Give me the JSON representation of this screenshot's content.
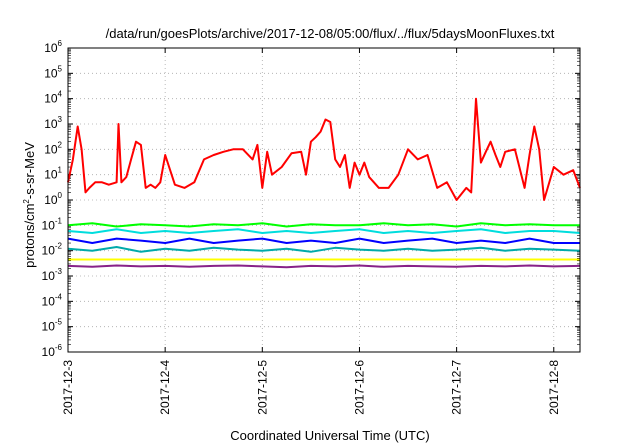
{
  "chart_data": {
    "type": "line",
    "title": "/data/run/goesPlots/archive/2017-12-08/05:00/flux/../flux/5daysMoonFluxes.txt",
    "xlabel": "Coordinated Universal Time (UTC)",
    "ylabel": "protons/cm2-s-sr-MeV",
    "yscale": "log",
    "ylim": [
      1e-06,
      1000000.0
    ],
    "xlim": [
      0,
      5.27
    ],
    "grid": true,
    "x_ticks": [
      {
        "x": 0,
        "label": "2017-12-3"
      },
      {
        "x": 1,
        "label": "2017-12-4"
      },
      {
        "x": 2,
        "label": "2017-12-5"
      },
      {
        "x": 3,
        "label": "2017-12-6"
      },
      {
        "x": 4,
        "label": "2017-12-7"
      },
      {
        "x": 5,
        "label": "2017-12-8"
      }
    ],
    "y_ticks": [
      {
        "value": 1e-06,
        "base": "10",
        "exp": "-6"
      },
      {
        "value": 1e-05,
        "base": "10",
        "exp": "-5"
      },
      {
        "value": 0.0001,
        "base": "10",
        "exp": "-4"
      },
      {
        "value": 0.001,
        "base": "10",
        "exp": "-3"
      },
      {
        "value": 0.01,
        "base": "10",
        "exp": "-2"
      },
      {
        "value": 0.1,
        "base": "10",
        "exp": "-1"
      },
      {
        "value": 1,
        "base": "10",
        "exp": "0"
      },
      {
        "value": 10,
        "base": "10",
        "exp": "1"
      },
      {
        "value": 100,
        "base": "10",
        "exp": "2"
      },
      {
        "value": 1000,
        "base": "10",
        "exp": "3"
      },
      {
        "value": 10000,
        "base": "10",
        "exp": "4"
      },
      {
        "value": 100000,
        "base": "10",
        "exp": "5"
      },
      {
        "value": 1000000,
        "base": "10",
        "exp": "6"
      }
    ],
    "series": [
      {
        "color": "#ff0000",
        "x": [
          0,
          0.05,
          0.1,
          0.14,
          0.18,
          0.22,
          0.28,
          0.35,
          0.42,
          0.5,
          0.52,
          0.55,
          0.6,
          0.65,
          0.7,
          0.75,
          0.8,
          0.85,
          0.9,
          0.95,
          1.0,
          1.1,
          1.2,
          1.3,
          1.4,
          1.5,
          1.6,
          1.7,
          1.8,
          1.9,
          1.95,
          2.0,
          2.05,
          2.1,
          2.2,
          2.3,
          2.4,
          2.45,
          2.5,
          2.55,
          2.6,
          2.65,
          2.7,
          2.75,
          2.8,
          2.85,
          2.9,
          2.95,
          3.0,
          3.05,
          3.1,
          3.2,
          3.3,
          3.4,
          3.5,
          3.6,
          3.7,
          3.8,
          3.9,
          4.0,
          4.1,
          4.15,
          4.2,
          4.25,
          4.3,
          4.35,
          4.4,
          4.45,
          4.5,
          4.6,
          4.7,
          4.75,
          4.8,
          4.85,
          4.9,
          5.0,
          5.1,
          5.2,
          5.27
        ],
        "y": [
          5,
          40,
          800,
          100,
          2,
          3,
          5,
          5,
          4,
          5,
          1000,
          5,
          8,
          40,
          200,
          150,
          3,
          4,
          3,
          5,
          60,
          4,
          3,
          5,
          40,
          60,
          80,
          100,
          100,
          40,
          150,
          3,
          80,
          10,
          20,
          70,
          80,
          10,
          200,
          300,
          500,
          1500,
          1200,
          40,
          20,
          60,
          3,
          30,
          10,
          30,
          8,
          3,
          3,
          10,
          100,
          40,
          60,
          3,
          5,
          1,
          3,
          2,
          10000,
          30,
          80,
          200,
          60,
          20,
          80,
          100,
          3,
          60,
          800,
          100,
          1,
          20,
          10,
          15,
          3
        ]
      },
      {
        "color": "#00ff00",
        "x": [
          0,
          0.25,
          0.5,
          0.75,
          1.0,
          1.25,
          1.5,
          1.75,
          2.0,
          2.25,
          2.5,
          2.75,
          3.0,
          3.25,
          3.5,
          3.75,
          4.0,
          4.25,
          4.5,
          4.75,
          5.0,
          5.27
        ],
        "y": [
          0.1,
          0.12,
          0.09,
          0.11,
          0.1,
          0.09,
          0.11,
          0.1,
          0.12,
          0.09,
          0.11,
          0.1,
          0.1,
          0.12,
          0.1,
          0.11,
          0.09,
          0.12,
          0.1,
          0.11,
          0.1,
          0.1
        ]
      },
      {
        "color": "#00dddd",
        "x": [
          0,
          0.25,
          0.5,
          0.75,
          1.0,
          1.25,
          1.5,
          1.75,
          2.0,
          2.25,
          2.5,
          2.75,
          3.0,
          3.25,
          3.5,
          3.75,
          4.0,
          4.25,
          4.5,
          4.75,
          5.0,
          5.27
        ],
        "y": [
          0.06,
          0.05,
          0.07,
          0.05,
          0.06,
          0.05,
          0.06,
          0.07,
          0.05,
          0.06,
          0.05,
          0.06,
          0.07,
          0.05,
          0.06,
          0.05,
          0.06,
          0.07,
          0.05,
          0.06,
          0.06,
          0.05
        ]
      },
      {
        "color": "#0000ff",
        "x": [
          0,
          0.25,
          0.5,
          0.75,
          1.0,
          1.25,
          1.5,
          1.75,
          2.0,
          2.25,
          2.5,
          2.75,
          3.0,
          3.25,
          3.5,
          3.75,
          4.0,
          4.25,
          4.5,
          4.75,
          5.0,
          5.27
        ],
        "y": [
          0.03,
          0.02,
          0.03,
          0.025,
          0.02,
          0.03,
          0.02,
          0.025,
          0.03,
          0.02,
          0.025,
          0.02,
          0.03,
          0.02,
          0.025,
          0.03,
          0.02,
          0.025,
          0.02,
          0.03,
          0.02,
          0.02
        ]
      },
      {
        "color": "#00aaaa",
        "x": [
          0,
          0.25,
          0.5,
          0.75,
          1.0,
          1.25,
          1.5,
          1.75,
          2.0,
          2.25,
          2.5,
          2.75,
          3.0,
          3.25,
          3.5,
          3.75,
          4.0,
          4.25,
          4.5,
          4.75,
          5.0,
          5.27
        ],
        "y": [
          0.012,
          0.01,
          0.014,
          0.009,
          0.012,
          0.01,
          0.013,
          0.011,
          0.01,
          0.012,
          0.009,
          0.013,
          0.011,
          0.01,
          0.012,
          0.01,
          0.011,
          0.013,
          0.01,
          0.012,
          0.011,
          0.01
        ]
      },
      {
        "color": "#ffff00",
        "x": [
          0,
          0.5,
          1.0,
          1.5,
          2.0,
          2.5,
          3.0,
          3.5,
          4.0,
          4.5,
          5.0,
          5.27
        ],
        "y": [
          0.0045,
          0.0045,
          0.0045,
          0.0045,
          0.0045,
          0.0045,
          0.0045,
          0.0045,
          0.0045,
          0.0045,
          0.0045,
          0.0045
        ]
      },
      {
        "color": "#882288",
        "x": [
          0,
          0.25,
          0.5,
          0.75,
          1.0,
          1.25,
          1.5,
          1.75,
          2.0,
          2.25,
          2.5,
          2.75,
          3.0,
          3.25,
          3.5,
          3.75,
          4.0,
          4.25,
          4.5,
          4.75,
          5.0,
          5.27
        ],
        "y": [
          0.0025,
          0.0023,
          0.0026,
          0.0024,
          0.0025,
          0.0023,
          0.0025,
          0.0026,
          0.0024,
          0.0022,
          0.0025,
          0.0024,
          0.0026,
          0.0023,
          0.0025,
          0.0024,
          0.0023,
          0.0025,
          0.0024,
          0.0026,
          0.0024,
          0.0025
        ]
      }
    ]
  }
}
